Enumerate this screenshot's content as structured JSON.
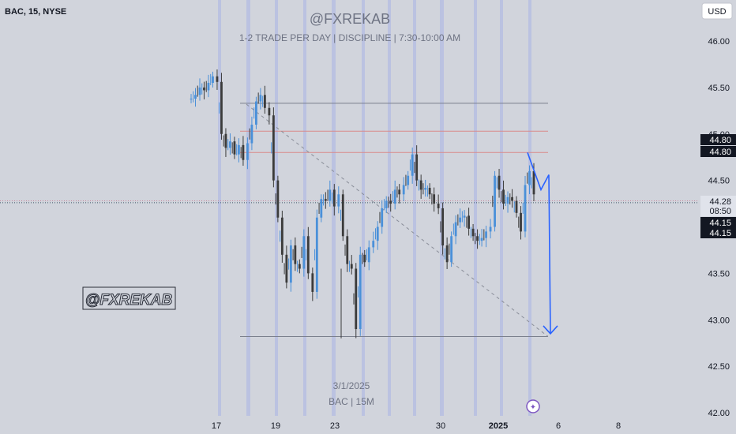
{
  "header": {
    "symbol": "BAC, 15, NYSE",
    "watermark_title": "@FXREKAB",
    "watermark_subtitle": "1-2 TRADE PER DAY |  DISCIPLINE  |  7:30-10:00 AM",
    "currency_button": "USD",
    "side_badge": "@FXREKAB",
    "footer_date": "3/1/2025",
    "footer_symbol": "BAC | 15M"
  },
  "colors": {
    "background": "#d1d4dc",
    "candle_up": "#4a90d9",
    "candle_down": "#3b3b3b",
    "session_band": "#b7bee2",
    "resistance_line": "#d98a8a",
    "level_line": "#7a7f8c",
    "projection": "#2962ff"
  },
  "chart_data": {
    "type": "line",
    "y_axis": {
      "ticks": [
        46.0,
        45.5,
        45.0,
        44.5,
        44.0,
        43.5,
        43.0,
        42.5,
        42.0
      ],
      "tick_labels": [
        "46.00",
        "45.50",
        "45.00",
        "44.50",
        "44.00",
        "43.50",
        "43.00",
        "42.50",
        "42.00"
      ],
      "ylim": [
        41.95,
        46.35
      ]
    },
    "x_axis": {
      "tick_labels": [
        "17",
        "19",
        "23",
        "30",
        "2025",
        "6",
        "8"
      ]
    },
    "price_labels": [
      {
        "text": "44.80",
        "value": 44.8,
        "style": "dark"
      },
      {
        "text": "44.80",
        "value": 44.8,
        "style": "dark"
      },
      {
        "text": "44.28",
        "value": 44.28,
        "style": "light"
      },
      {
        "text": "08:50",
        "value": 44.28,
        "style": "light"
      },
      {
        "text": "44.15",
        "value": 44.15,
        "style": "dark"
      },
      {
        "text": "44.15",
        "value": 44.15,
        "style": "dark"
      }
    ],
    "price_series": [
      45.38,
      45.42,
      45.5,
      45.47,
      45.55,
      45.62,
      45.56,
      45.0,
      44.85,
      44.92,
      44.78,
      44.88,
      44.72,
      44.9,
      45.1,
      45.35,
      45.42,
      45.28,
      45.2,
      44.5,
      44.1,
      43.7,
      43.4,
      43.8,
      43.6,
      43.55,
      43.9,
      43.5,
      43.3,
      44.1,
      44.3,
      44.28,
      44.4,
      44.22,
      44.35,
      43.9,
      43.6,
      43.55,
      42.9,
      43.7,
      43.62,
      43.78,
      43.85,
      44.0,
      44.2,
      44.28,
      44.25,
      44.4,
      44.35,
      44.45,
      44.55,
      44.78,
      44.5,
      44.4,
      44.42,
      44.35,
      44.25,
      44.2,
      43.8,
      43.62,
      43.9,
      44.05,
      44.1,
      44.12,
      43.98,
      43.9,
      43.85,
      43.88,
      43.95,
      44.0,
      44.55,
      44.4,
      44.25,
      44.32,
      44.28,
      44.15,
      43.95,
      44.45,
      44.6,
      44.35
    ],
    "levels": [
      {
        "name": "top-level",
        "value": 45.33,
        "kind": "level"
      },
      {
        "name": "resistance-1",
        "value": 45.03,
        "kind": "resistance"
      },
      {
        "name": "resistance-2",
        "value": 44.8,
        "kind": "resistance"
      },
      {
        "name": "bottom-level",
        "value": 42.82,
        "kind": "level"
      },
      {
        "name": "current-price",
        "value": 44.28,
        "kind": "dotted"
      },
      {
        "name": "bid-price",
        "value": 44.26,
        "kind": "dotted-dark"
      }
    ],
    "trendline": {
      "from_value": 45.32,
      "to_value": 42.82
    },
    "projection_path_values": [
      44.8,
      44.4,
      44.56,
      42.85
    ]
  }
}
